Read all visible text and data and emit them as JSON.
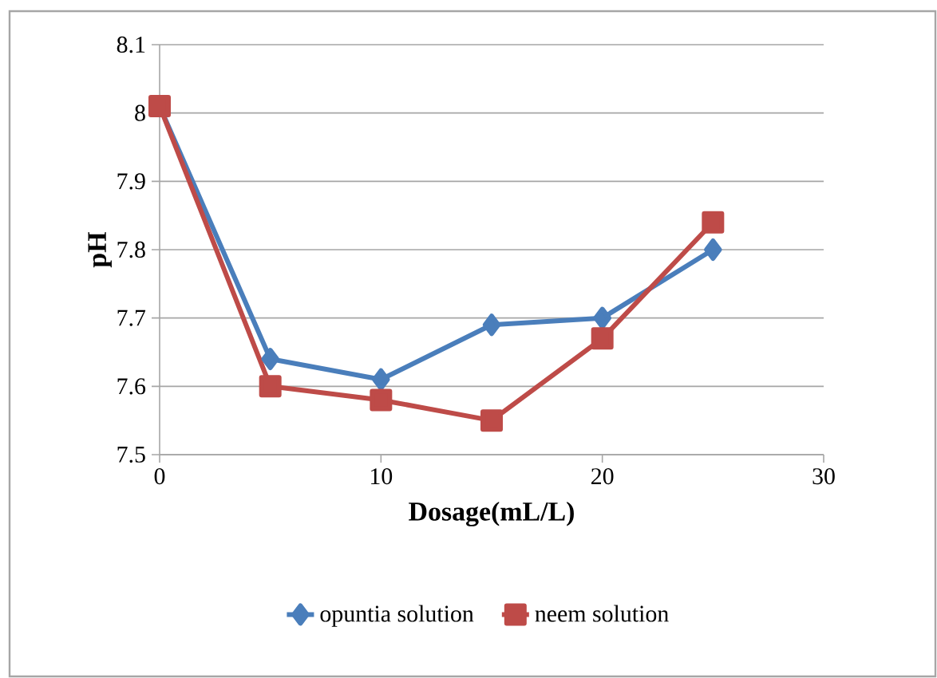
{
  "chart_data": {
    "type": "line",
    "xlabel": "Dosage(mL/L)",
    "ylabel": "pH",
    "xlim": [
      0,
      30
    ],
    "xticks": [
      0,
      10,
      20,
      30
    ],
    "ylim": [
      7.5,
      8.1
    ],
    "yticks": [
      7.5,
      7.6,
      7.7,
      7.8,
      7.9,
      8,
      8.1
    ],
    "grid": "y",
    "legend": "bottom",
    "x": [
      0,
      5,
      10,
      15,
      20,
      25
    ],
    "series": [
      {
        "name": "opuntia solution",
        "color": "#4a7ebb",
        "marker": "diamond",
        "values": [
          8.01,
          7.64,
          7.61,
          7.69,
          7.7,
          7.8
        ]
      },
      {
        "name": "neem solution",
        "color": "#be4b48",
        "marker": "square",
        "values": [
          8.01,
          7.6,
          7.58,
          7.55,
          7.67,
          7.84
        ]
      }
    ]
  }
}
